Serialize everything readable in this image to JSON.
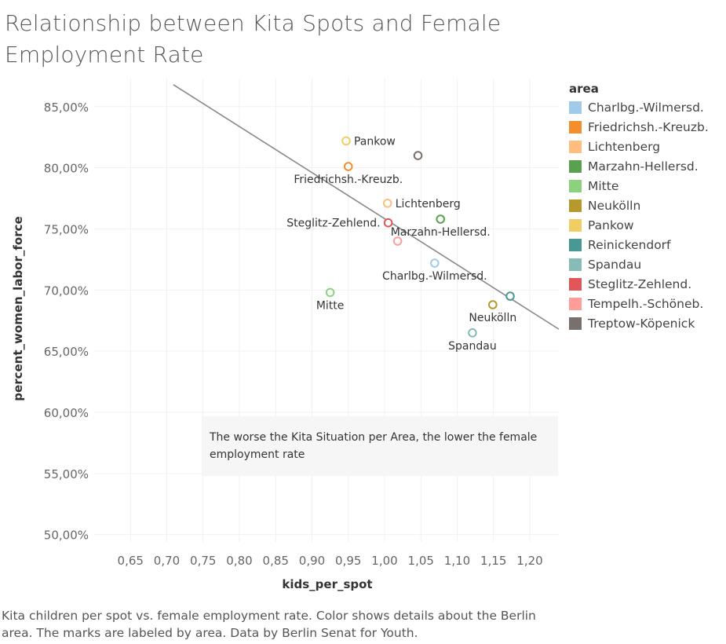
{
  "title": "Relationship between Kita Spots and Female Employment Rate",
  "caption": "Kita children per spot vs. female employment rate.  Color shows details about the Berlin area.  The marks are labeled by area. Data by Berlin Senat for Youth.",
  "annotation": "The worse the Kita Situation per Area, the lower the female employment rate",
  "legend": {
    "title": "area",
    "items": [
      {
        "label": "Charlbg.-Wilmersd.",
        "color": "#a0cbe8"
      },
      {
        "label": "Friedrichsh.-Kreuzb.",
        "color": "#f28e2b"
      },
      {
        "label": "Lichtenberg",
        "color": "#ffbe7d"
      },
      {
        "label": "Marzahn-Hellersd.",
        "color": "#59a14f"
      },
      {
        "label": "Mitte",
        "color": "#8cd17d"
      },
      {
        "label": "Neukölln",
        "color": "#b6992d"
      },
      {
        "label": "Pankow",
        "color": "#f1ce63"
      },
      {
        "label": "Reinickendorf",
        "color": "#499894"
      },
      {
        "label": "Spandau",
        "color": "#86bcb6"
      },
      {
        "label": "Steglitz-Zehlend.",
        "color": "#e15759"
      },
      {
        "label": "Tempelh.-Schöneb.",
        "color": "#ff9d9a"
      },
      {
        "label": "Treptow-Köpenick",
        "color": "#79706e"
      }
    ]
  },
  "chart_data": {
    "type": "scatter",
    "xlabel": "kids_per_spot",
    "ylabel": "percent_women_labor_force",
    "x_ticks": [
      "0,65",
      "0,70",
      "0,75",
      "0,80",
      "0,85",
      "0,90",
      "0,95",
      "1,00",
      "1,05",
      "1,10",
      "1,15",
      "1,20"
    ],
    "x_tick_values": [
      0.65,
      0.7,
      0.75,
      0.8,
      0.85,
      0.9,
      0.95,
      1.0,
      1.05,
      1.1,
      1.15,
      1.2
    ],
    "y_ticks": [
      "50,00%",
      "55,00%",
      "60,00%",
      "65,00%",
      "70,00%",
      "75,00%",
      "80,00%",
      "85,00%"
    ],
    "y_tick_values": [
      50,
      55,
      60,
      65,
      70,
      75,
      80,
      85
    ],
    "xlim": [
      0.6,
      1.24
    ],
    "ylim": [
      49.4,
      87.3
    ],
    "grid": true,
    "legend_position": "right",
    "points": [
      {
        "area": "Pankow",
        "x": 0.947,
        "y": 82.2,
        "label": "Pankow",
        "color": "#f1ce63",
        "label_pos": "right"
      },
      {
        "area": "Treptow-Köpenick",
        "x": 1.046,
        "y": 81.0,
        "label": "",
        "color": "#79706e",
        "label_pos": "none"
      },
      {
        "area": "Friedrichsh.-Kreuzb.",
        "x": 0.95,
        "y": 80.1,
        "label": "Friedrichsh.-Kreuzb.",
        "color": "#f28e2b",
        "label_pos": "below"
      },
      {
        "area": "Lichtenberg",
        "x": 1.004,
        "y": 77.1,
        "label": "Lichtenberg",
        "color": "#ffbe7d",
        "label_pos": "right"
      },
      {
        "area": "Marzahn-Hellersd.",
        "x": 1.077,
        "y": 75.8,
        "label": "Marzahn-Hellersd.",
        "color": "#59a14f",
        "label_pos": "below"
      },
      {
        "area": "Steglitz-Zehlend.",
        "x": 1.005,
        "y": 75.5,
        "label": "Steglitz-Zehlend.",
        "color": "#e15759",
        "label_pos": "left"
      },
      {
        "area": "Tempelh.-Schöneb.",
        "x": 1.018,
        "y": 74.0,
        "label": "",
        "color": "#ff9d9a",
        "label_pos": "none"
      },
      {
        "area": "Charlbg.-Wilmersd.",
        "x": 1.069,
        "y": 72.2,
        "label": "Charlbg.-Wilmersd.",
        "color": "#a0cbe8",
        "label_pos": "below"
      },
      {
        "area": "Mitte",
        "x": 0.925,
        "y": 69.8,
        "label": "Mitte",
        "color": "#8cd17d",
        "label_pos": "below"
      },
      {
        "area": "Reinickendorf",
        "x": 1.173,
        "y": 69.5,
        "label": "",
        "color": "#499894",
        "label_pos": "none"
      },
      {
        "area": "Neukölln",
        "x": 1.149,
        "y": 68.8,
        "label": "Neukölln",
        "color": "#b6992d",
        "label_pos": "below"
      },
      {
        "area": "Spandau",
        "x": 1.121,
        "y": 66.5,
        "label": "Spandau",
        "color": "#86bcb6",
        "label_pos": "below"
      }
    ],
    "trend_line": {
      "x": [
        0.709,
        1.24
      ],
      "y": [
        86.8,
        66.8
      ],
      "color": "#888888"
    }
  }
}
